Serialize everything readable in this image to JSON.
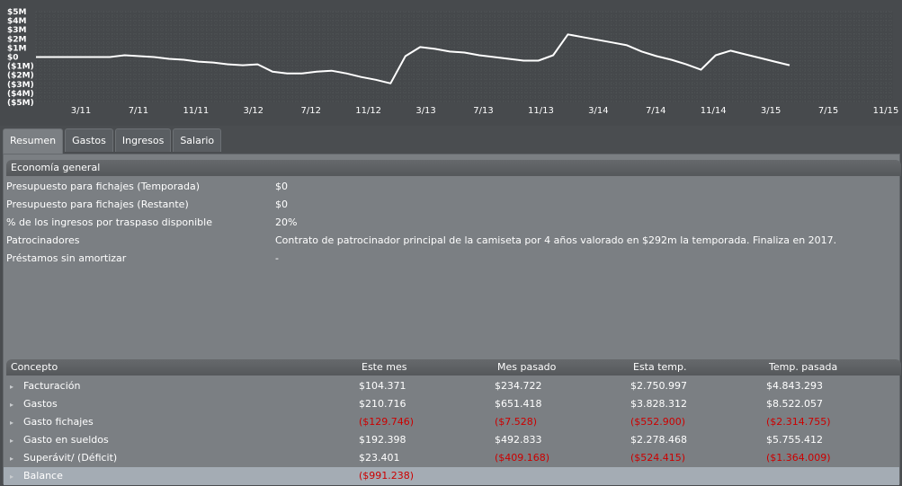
{
  "chart_data": {
    "type": "line",
    "yticks": [
      "$5M",
      "$4M",
      "$3M",
      "$2M",
      "$1M",
      "$0",
      "($1M)",
      "($2M)",
      "($3M)",
      "($4M)",
      "($5M)"
    ],
    "ylim": [
      -5,
      5
    ],
    "xticks": [
      "3/11",
      "7/11",
      "11/11",
      "3/12",
      "7/12",
      "11/12",
      "3/13",
      "7/13",
      "11/13",
      "3/14",
      "7/14",
      "11/14",
      "3/15",
      "7/15",
      "11/15"
    ],
    "x_range": [
      0,
      58
    ],
    "series": [
      {
        "color": "#ffffff",
        "points": [
          [
            0,
            0
          ],
          [
            1,
            0
          ],
          [
            2,
            0
          ],
          [
            3,
            0
          ],
          [
            4,
            0
          ],
          [
            5,
            0
          ],
          [
            6,
            0.2
          ],
          [
            7,
            0.1
          ],
          [
            8,
            0
          ],
          [
            9,
            -0.2
          ],
          [
            10,
            -0.3
          ],
          [
            11,
            -0.5
          ],
          [
            12,
            -0.6
          ],
          [
            13,
            -0.8
          ],
          [
            14,
            -0.9
          ],
          [
            15,
            -0.8
          ],
          [
            16,
            -1.6
          ],
          [
            17,
            -1.8
          ],
          [
            18,
            -1.8
          ],
          [
            19,
            -1.6
          ],
          [
            20,
            -1.5
          ],
          [
            21,
            -1.8
          ],
          [
            22,
            -2.2
          ],
          [
            23,
            -2.5
          ],
          [
            24,
            -2.9
          ],
          [
            25,
            0.1
          ],
          [
            26,
            1.1
          ],
          [
            27,
            0.9
          ],
          [
            28,
            0.6
          ],
          [
            29,
            0.5
          ],
          [
            30,
            0.2
          ],
          [
            31,
            0
          ],
          [
            32,
            -0.2
          ],
          [
            33,
            -0.4
          ],
          [
            34,
            -0.4
          ],
          [
            35,
            0.2
          ],
          [
            36,
            2.5
          ],
          [
            37,
            2.2
          ],
          [
            38,
            1.9
          ],
          [
            39,
            1.6
          ],
          [
            40,
            1.3
          ],
          [
            41,
            0.6
          ],
          [
            42,
            0.1
          ],
          [
            43,
            -0.3
          ],
          [
            44,
            -0.8
          ],
          [
            45,
            -1.4
          ],
          [
            46,
            0.2
          ],
          [
            47,
            0.7
          ],
          [
            48,
            0.3
          ],
          [
            49,
            -0.1
          ],
          [
            50,
            -0.5
          ],
          [
            51,
            -0.9
          ]
        ]
      }
    ]
  },
  "tabs": [
    {
      "label": "Resumen",
      "active": true
    },
    {
      "label": "Gastos",
      "active": false
    },
    {
      "label": "Ingresos",
      "active": false
    },
    {
      "label": "Salario",
      "active": false
    }
  ],
  "economy": {
    "header": "Economía general",
    "rows": [
      {
        "label": "Presupuesto para fichajes (Temporada)",
        "value": "$0"
      },
      {
        "label": "Presupuesto para fichajes (Restante)",
        "value": "$0"
      },
      {
        "label": "% de los ingresos por traspaso disponible",
        "value": "20%"
      },
      {
        "label": "Patrocinadores",
        "value": "Contrato de patrocinador principal de la camiseta por 4 años valorado en $292m la temporada. Finaliza en 2017."
      },
      {
        "label": "Préstamos sin amortizar",
        "value": "-"
      }
    ]
  },
  "summary": {
    "columns": [
      "Concepto",
      "Este mes",
      "Mes pasado",
      "Esta temp.",
      "Temp. pasada"
    ],
    "rows": [
      {
        "label": "Facturación",
        "values": [
          "$104.371",
          "$234.722",
          "$2.750.997",
          "$4.843.293"
        ]
      },
      {
        "label": "Gastos",
        "values": [
          "$210.716",
          "$651.418",
          "$3.828.312",
          "$8.522.057"
        ]
      },
      {
        "label": "Gasto fichajes",
        "values": [
          "($129.746)",
          "($7.528)",
          "($552.900)",
          "($2.314.755)"
        ]
      },
      {
        "label": "Gasto en sueldos",
        "values": [
          "$192.398",
          "$492.833",
          "$2.278.468",
          "$5.755.412"
        ]
      },
      {
        "label": "Superávit/ (Déficit)",
        "values": [
          "$23.401",
          "($409.168)",
          "($524.415)",
          "($1.364.009)"
        ]
      },
      {
        "label": "Balance",
        "values": [
          "($991.238)",
          "",
          "",
          ""
        ]
      }
    ],
    "negative_color": "#cc0000",
    "highlight_color": "#a4acb4"
  }
}
